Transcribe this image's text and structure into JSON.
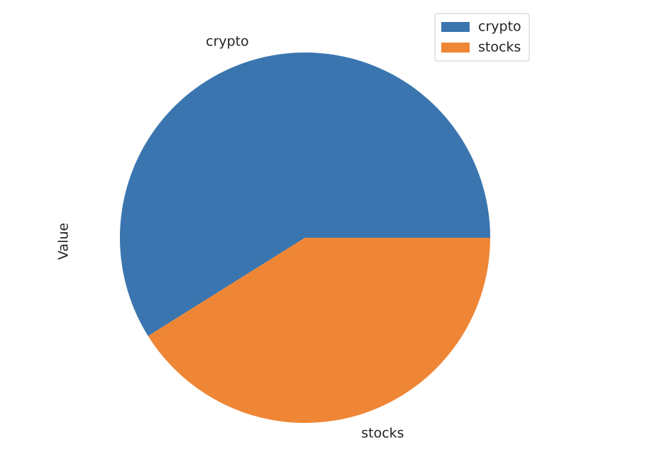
{
  "chart_data": {
    "type": "pie",
    "ylabel": "Value",
    "categories": [
      "crypto",
      "stocks"
    ],
    "values": [
      58.9,
      41.1
    ],
    "colors": [
      "#3a75af",
      "#ef8636"
    ],
    "start_angle_deg": 0,
    "direction": "counterclockwise",
    "legend": {
      "position": "top-right",
      "entries": [
        "crypto",
        "stocks"
      ]
    }
  }
}
